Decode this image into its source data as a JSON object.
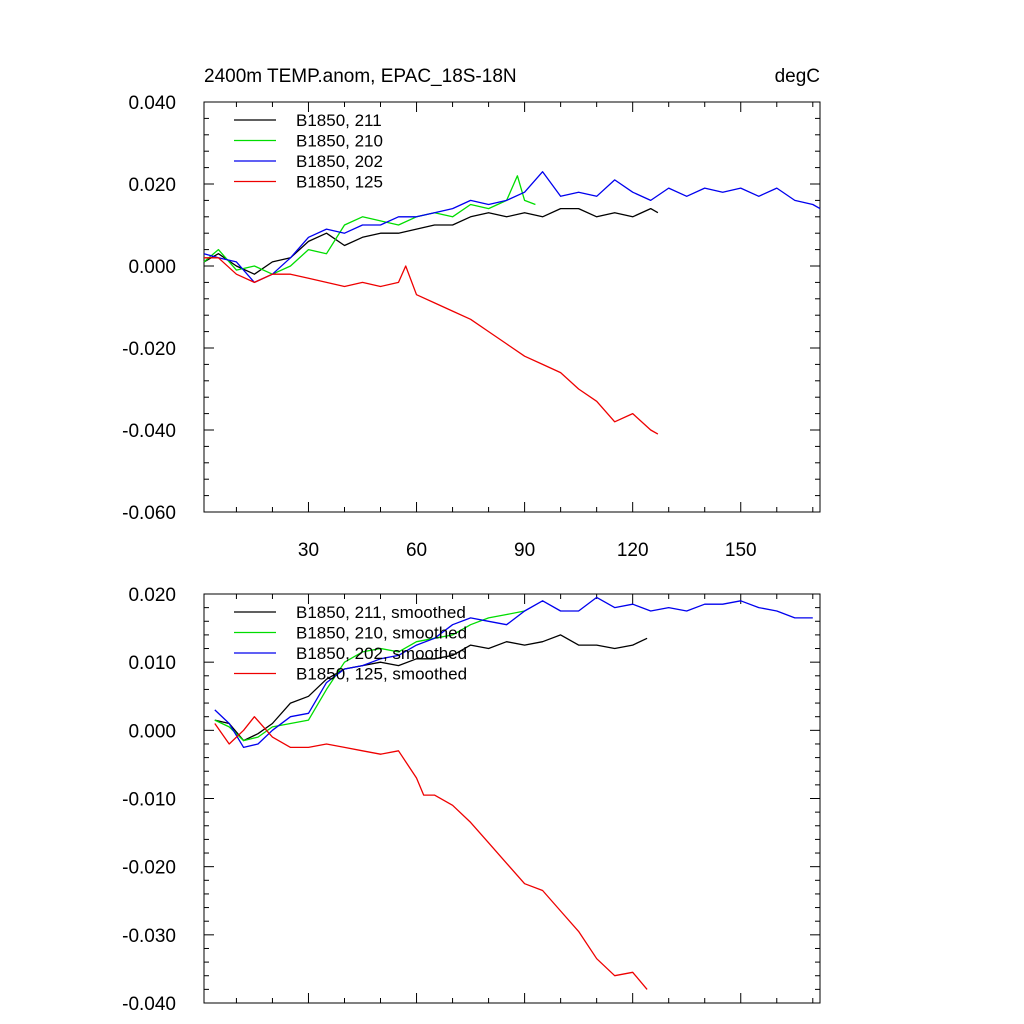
{
  "chart_data": [
    {
      "type": "line",
      "title": "2400m TEMP.anom, EPAC_18S-18N",
      "units": "degC",
      "xlim": [
        1,
        172
      ],
      "ylim": [
        -0.06,
        0.04
      ],
      "xticks": [
        30,
        60,
        90,
        120,
        150
      ],
      "xtick_labels": [
        "30",
        "60",
        "90",
        "120",
        "150"
      ],
      "yticks": [
        0.04,
        0.02,
        0.0,
        -0.02,
        -0.04,
        -0.06
      ],
      "ytick_labels": [
        "0.040",
        "0.020",
        "0.000",
        "-0.020",
        "-0.040",
        "-0.060"
      ],
      "legend_position": "top-left",
      "series": [
        {
          "name": "B1850, 211",
          "color": "#000000",
          "points": [
            [
              1,
              0.001
            ],
            [
              5,
              0.003
            ],
            [
              10,
              0.0
            ],
            [
              15,
              -0.002
            ],
            [
              20,
              0.001
            ],
            [
              25,
              0.002
            ],
            [
              30,
              0.006
            ],
            [
              35,
              0.008
            ],
            [
              40,
              0.005
            ],
            [
              45,
              0.007
            ],
            [
              50,
              0.008
            ],
            [
              55,
              0.008
            ],
            [
              60,
              0.009
            ],
            [
              65,
              0.01
            ],
            [
              70,
              0.01
            ],
            [
              75,
              0.012
            ],
            [
              80,
              0.013
            ],
            [
              85,
              0.012
            ],
            [
              90,
              0.013
            ],
            [
              95,
              0.012
            ],
            [
              100,
              0.014
            ],
            [
              105,
              0.014
            ],
            [
              110,
              0.012
            ],
            [
              115,
              0.013
            ],
            [
              120,
              0.012
            ],
            [
              125,
              0.014
            ],
            [
              127,
              0.013
            ]
          ]
        },
        {
          "name": "B1850, 210",
          "color": "#00dd00",
          "points": [
            [
              1,
              0.001
            ],
            [
              5,
              0.004
            ],
            [
              10,
              -0.001
            ],
            [
              15,
              0.0
            ],
            [
              20,
              -0.002
            ],
            [
              25,
              0.0
            ],
            [
              30,
              0.004
            ],
            [
              35,
              0.003
            ],
            [
              40,
              0.01
            ],
            [
              45,
              0.012
            ],
            [
              50,
              0.011
            ],
            [
              55,
              0.01
            ],
            [
              60,
              0.012
            ],
            [
              65,
              0.013
            ],
            [
              70,
              0.012
            ],
            [
              75,
              0.015
            ],
            [
              80,
              0.014
            ],
            [
              85,
              0.016
            ],
            [
              88,
              0.022
            ],
            [
              90,
              0.016
            ],
            [
              93,
              0.015
            ]
          ]
        },
        {
          "name": "B1850, 202",
          "color": "#0000ee",
          "points": [
            [
              1,
              0.003
            ],
            [
              5,
              0.002
            ],
            [
              10,
              0.001
            ],
            [
              15,
              -0.004
            ],
            [
              20,
              -0.002
            ],
            [
              25,
              0.002
            ],
            [
              30,
              0.007
            ],
            [
              35,
              0.009
            ],
            [
              40,
              0.008
            ],
            [
              45,
              0.01
            ],
            [
              50,
              0.01
            ],
            [
              55,
              0.012
            ],
            [
              60,
              0.012
            ],
            [
              65,
              0.013
            ],
            [
              70,
              0.014
            ],
            [
              75,
              0.016
            ],
            [
              80,
              0.015
            ],
            [
              85,
              0.016
            ],
            [
              90,
              0.018
            ],
            [
              95,
              0.023
            ],
            [
              100,
              0.017
            ],
            [
              105,
              0.018
            ],
            [
              110,
              0.017
            ],
            [
              115,
              0.021
            ],
            [
              120,
              0.018
            ],
            [
              125,
              0.016
            ],
            [
              130,
              0.019
            ],
            [
              135,
              0.017
            ],
            [
              140,
              0.019
            ],
            [
              145,
              0.018
            ],
            [
              150,
              0.019
            ],
            [
              155,
              0.017
            ],
            [
              160,
              0.019
            ],
            [
              165,
              0.016
            ],
            [
              170,
              0.015
            ],
            [
              172,
              0.014
            ]
          ]
        },
        {
          "name": "B1850, 125",
          "color": "#ee0000",
          "points": [
            [
              1,
              0.002
            ],
            [
              5,
              0.002
            ],
            [
              10,
              -0.002
            ],
            [
              15,
              -0.004
            ],
            [
              20,
              -0.002
            ],
            [
              25,
              -0.002
            ],
            [
              30,
              -0.003
            ],
            [
              35,
              -0.004
            ],
            [
              40,
              -0.005
            ],
            [
              45,
              -0.004
            ],
            [
              50,
              -0.005
            ],
            [
              55,
              -0.004
            ],
            [
              57,
              0.0
            ],
            [
              60,
              -0.007
            ],
            [
              65,
              -0.009
            ],
            [
              70,
              -0.011
            ],
            [
              75,
              -0.013
            ],
            [
              80,
              -0.016
            ],
            [
              85,
              -0.019
            ],
            [
              90,
              -0.022
            ],
            [
              95,
              -0.024
            ],
            [
              100,
              -0.026
            ],
            [
              105,
              -0.03
            ],
            [
              110,
              -0.033
            ],
            [
              115,
              -0.038
            ],
            [
              120,
              -0.036
            ],
            [
              125,
              -0.04
            ],
            [
              127,
              -0.041
            ]
          ]
        }
      ]
    },
    {
      "type": "line",
      "xlim": [
        1,
        172
      ],
      "ylim": [
        -0.04,
        0.02
      ],
      "xticks": [
        30,
        60,
        90,
        120,
        150
      ],
      "yticks": [
        0.02,
        0.01,
        0.0,
        -0.01,
        -0.02,
        -0.03,
        -0.04
      ],
      "ytick_labels": [
        "0.020",
        "0.010",
        "0.000",
        "-0.010",
        "-0.020",
        "-0.030",
        "-0.040"
      ],
      "legend_position": "top-left",
      "series": [
        {
          "name": "B1850, 211, smoothed",
          "color": "#000000",
          "points": [
            [
              4,
              0.0015
            ],
            [
              8,
              0.001
            ],
            [
              12,
              -0.0015
            ],
            [
              16,
              -0.0005
            ],
            [
              20,
              0.001
            ],
            [
              25,
              0.004
            ],
            [
              30,
              0.005
            ],
            [
              35,
              0.0075
            ],
            [
              40,
              0.009
            ],
            [
              45,
              0.0095
            ],
            [
              50,
              0.01
            ],
            [
              55,
              0.0095
            ],
            [
              60,
              0.0105
            ],
            [
              65,
              0.0105
            ],
            [
              70,
              0.011
            ],
            [
              75,
              0.0125
            ],
            [
              80,
              0.012
            ],
            [
              85,
              0.013
            ],
            [
              90,
              0.0125
            ],
            [
              95,
              0.013
            ],
            [
              100,
              0.014
            ],
            [
              105,
              0.0125
            ],
            [
              110,
              0.0125
            ],
            [
              115,
              0.012
            ],
            [
              120,
              0.0125
            ],
            [
              124,
              0.0135
            ]
          ]
        },
        {
          "name": "B1850, 210, smoothed",
          "color": "#00dd00",
          "points": [
            [
              4,
              0.0015
            ],
            [
              8,
              0.0005
            ],
            [
              12,
              -0.0015
            ],
            [
              16,
              -0.001
            ],
            [
              20,
              0.0005
            ],
            [
              25,
              0.001
            ],
            [
              30,
              0.0015
            ],
            [
              35,
              0.006
            ],
            [
              40,
              0.01
            ],
            [
              45,
              0.0115
            ],
            [
              50,
              0.012
            ],
            [
              55,
              0.0115
            ],
            [
              60,
              0.013
            ],
            [
              65,
              0.0135
            ],
            [
              70,
              0.014
            ],
            [
              75,
              0.0155
            ],
            [
              80,
              0.0165
            ],
            [
              85,
              0.017
            ],
            [
              90,
              0.0175
            ]
          ]
        },
        {
          "name": "B1850, 202, smoothed",
          "color": "#0000ee",
          "points": [
            [
              4,
              0.003
            ],
            [
              8,
              0.001
            ],
            [
              12,
              -0.0025
            ],
            [
              16,
              -0.002
            ],
            [
              20,
              0.0
            ],
            [
              25,
              0.002
            ],
            [
              30,
              0.0025
            ],
            [
              35,
              0.007
            ],
            [
              40,
              0.009
            ],
            [
              45,
              0.0095
            ],
            [
              50,
              0.0105
            ],
            [
              55,
              0.011
            ],
            [
              60,
              0.0125
            ],
            [
              65,
              0.0135
            ],
            [
              70,
              0.0155
            ],
            [
              75,
              0.0165
            ],
            [
              80,
              0.016
            ],
            [
              85,
              0.0155
            ],
            [
              90,
              0.0175
            ],
            [
              95,
              0.019
            ],
            [
              100,
              0.0175
            ],
            [
              105,
              0.0175
            ],
            [
              110,
              0.0195
            ],
            [
              115,
              0.018
            ],
            [
              120,
              0.0185
            ],
            [
              125,
              0.0175
            ],
            [
              130,
              0.018
            ],
            [
              135,
              0.0175
            ],
            [
              140,
              0.0185
            ],
            [
              145,
              0.0185
            ],
            [
              150,
              0.019
            ],
            [
              155,
              0.018
            ],
            [
              160,
              0.0175
            ],
            [
              165,
              0.0165
            ],
            [
              170,
              0.0165
            ]
          ]
        },
        {
          "name": "B1850, 125, smoothed",
          "color": "#ee0000",
          "points": [
            [
              4,
              0.001
            ],
            [
              8,
              -0.002
            ],
            [
              12,
              0.0
            ],
            [
              15,
              0.002
            ],
            [
              20,
              -0.001
            ],
            [
              25,
              -0.0025
            ],
            [
              30,
              -0.0025
            ],
            [
              35,
              -0.002
            ],
            [
              40,
              -0.0025
            ],
            [
              45,
              -0.003
            ],
            [
              50,
              -0.0035
            ],
            [
              55,
              -0.003
            ],
            [
              60,
              -0.007
            ],
            [
              62,
              -0.0095
            ],
            [
              65,
              -0.0095
            ],
            [
              70,
              -0.011
            ],
            [
              75,
              -0.0135
            ],
            [
              80,
              -0.0165
            ],
            [
              85,
              -0.0195
            ],
            [
              90,
              -0.0225
            ],
            [
              95,
              -0.0235
            ],
            [
              100,
              -0.0265
            ],
            [
              105,
              -0.0295
            ],
            [
              110,
              -0.0335
            ],
            [
              115,
              -0.036
            ],
            [
              120,
              -0.0355
            ],
            [
              124,
              -0.038
            ]
          ]
        }
      ]
    }
  ]
}
